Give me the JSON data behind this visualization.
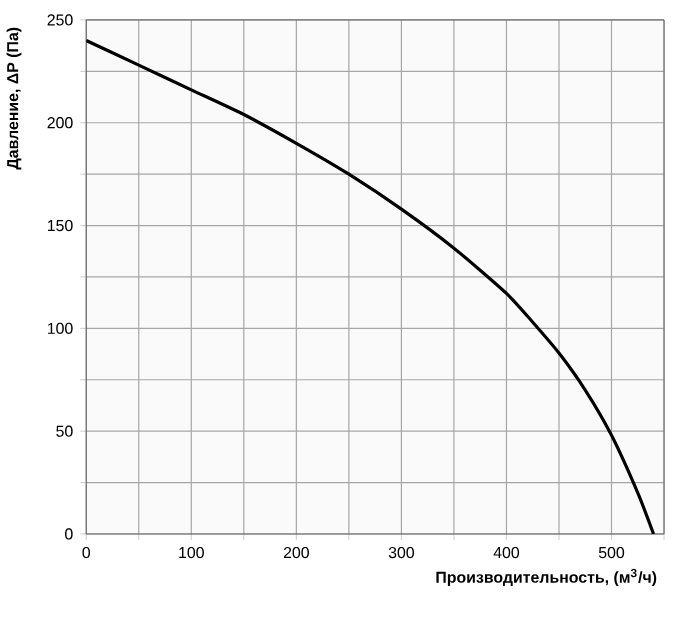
{
  "chart_data": {
    "type": "line",
    "xlabel": "Производительность, (м$^{3}$/ч)",
    "ylabel": "Давление, ΔP (Па)",
    "x": [
      0,
      50,
      100,
      150,
      200,
      250,
      300,
      350,
      400,
      425,
      450,
      475,
      500,
      525,
      540
    ],
    "series": [
      {
        "color": "#000000",
        "values": [
          240,
          228,
          216,
          204,
          190,
          175,
          158,
          139,
          117,
          103,
          88,
          70,
          48,
          20,
          0
        ]
      }
    ],
    "xlim": [
      0,
      550
    ],
    "xticks": [
      0,
      {
        "value": 50,
        "label": null
      },
      100,
      {
        "value": 150,
        "label": null
      },
      200,
      {
        "value": 250,
        "label": null
      },
      300,
      {
        "value": 350,
        "label": null
      },
      400,
      {
        "value": 450,
        "label": null
      },
      500,
      {
        "value": 550,
        "label": null
      }
    ],
    "ylim": [
      0,
      250
    ],
    "yticks": [
      0,
      {
        "value": 25,
        "label": null
      },
      50,
      {
        "value": 75,
        "label": null
      },
      100,
      {
        "value": 125,
        "label": null
      },
      150,
      {
        "value": 175,
        "label": null
      },
      200,
      {
        "value": 225,
        "label": null
      },
      250
    ],
    "grid": true,
    "marker": "none",
    "line_style": "solid"
  }
}
